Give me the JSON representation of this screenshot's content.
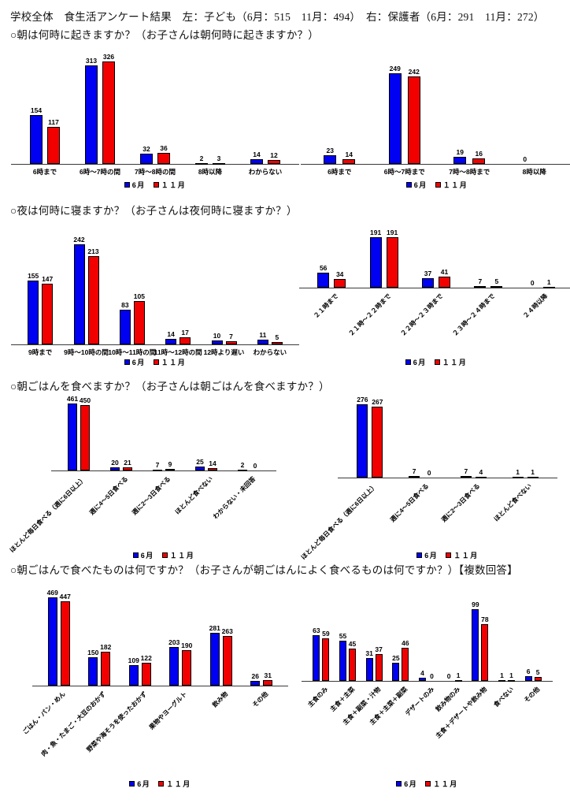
{
  "document": {
    "title": "学校全体　食生活アンケート結果　左：子ども（6月：515　11月：494）　右：保護者（6月：291　11月：272）",
    "questions": [
      "○朝は何時に起きますか？（お子さんは朝何時に起きますか？）",
      "○夜は何時に寝ますか？（お子さんは夜何時に寝ますか？）",
      "○朝ごはんを食べますか？（お子さんは朝ごはんを食べますか？）",
      "○朝ごはんで食べたものは何ですか？（お子さんが朝ごはんによく食べるものは何ですか？）【複数回答】"
    ]
  },
  "colors": {
    "june": "#0000f2",
    "november": "#f20000",
    "axis": "#3a3a3a"
  },
  "chart_data": [
    {
      "id": "wake-time-children",
      "type": "bar",
      "title": "朝は何時に起きますか？（子ども）",
      "categories": [
        "6時まで",
        "6時～7時の間",
        "7時～8時の間",
        "8時以降",
        "わからない"
      ],
      "series": [
        {
          "name": "6月",
          "color": "#0000f2",
          "values": [
            154,
            313,
            32,
            2,
            14
          ]
        },
        {
          "name": "１１月",
          "color": "#f20000",
          "values": [
            117,
            326,
            36,
            3,
            12
          ]
        }
      ],
      "ylim": [
        0,
        350
      ],
      "grid": false,
      "legend_position": "bottom",
      "rotated_labels": false
    },
    {
      "id": "wake-time-parents",
      "type": "bar",
      "title": "お子さんは朝何時に起きますか？（保護者）",
      "categories": [
        "6時まで",
        "6時～7時まで",
        "7時～8時まで",
        "8時以降"
      ],
      "series": [
        {
          "name": "6月",
          "color": "#0000f2",
          "values": [
            23,
            249,
            19,
            0
          ]
        },
        {
          "name": "１１月",
          "color": "#f20000",
          "values": [
            14,
            242,
            16,
            null
          ]
        }
      ],
      "ylim": [
        0,
        280
      ],
      "grid": false,
      "legend_position": "bottom",
      "rotated_labels": false
    },
    {
      "id": "bedtime-children",
      "type": "bar",
      "title": "夜は何時に寝ますか？（子ども）",
      "categories": [
        "9時まで",
        "9時～10時の間",
        "10時～11時の間",
        "11時～12時の間",
        "12時より遅い",
        "わからない"
      ],
      "series": [
        {
          "name": "6月",
          "color": "#0000f2",
          "values": [
            155,
            242,
            83,
            14,
            10,
            11
          ]
        },
        {
          "name": "１１月",
          "color": "#f20000",
          "values": [
            147,
            213,
            105,
            17,
            7,
            5
          ]
        }
      ],
      "ylim": [
        0,
        260
      ],
      "grid": false,
      "legend_position": "bottom",
      "rotated_labels": false
    },
    {
      "id": "bedtime-parents",
      "type": "bar",
      "title": "お子さんは夜何時に寝ますか？（保護者）",
      "categories": [
        "２１時まで",
        "２１時～２２時まで",
        "２２時～２３時まで",
        "２３時～２４時まで",
        "２４時以降"
      ],
      "series": [
        {
          "name": "6月",
          "color": "#0000f2",
          "values": [
            56,
            191,
            37,
            7,
            0
          ]
        },
        {
          "name": "１１月",
          "color": "#f20000",
          "values": [
            34,
            191,
            41,
            5,
            1
          ]
        }
      ],
      "ylim": [
        0,
        210
      ],
      "grid": false,
      "legend_position": "bottom",
      "rotated_labels": true
    },
    {
      "id": "breakfast-frequency-children",
      "type": "bar",
      "title": "朝ごはんを食べますか？（子ども）",
      "categories": [
        "ほとんど毎日食べる（週に6日以上）",
        "週に4～5日食べる",
        "週に2～3日食べる",
        "ほとんど食べない",
        "わからない・未回答"
      ],
      "series": [
        {
          "name": "6月",
          "color": "#0000f2",
          "values": [
            461,
            20,
            7,
            25,
            2
          ]
        },
        {
          "name": "１１月",
          "color": "#f20000",
          "values": [
            450,
            21,
            9,
            14,
            0
          ]
        }
      ],
      "ylim": [
        0,
        500
      ],
      "grid": false,
      "legend_position": "bottom",
      "rotated_labels": true
    },
    {
      "id": "breakfast-frequency-parents",
      "type": "bar",
      "title": "お子さんは朝ごはんを食べますか？（保護者）",
      "categories": [
        "ほとんど毎日食べる（週に6日以上）",
        "週に4～5日食べる",
        "週に2～3日食べる",
        "ほとんど食べない"
      ],
      "series": [
        {
          "name": "6月",
          "color": "#0000f2",
          "values": [
            276,
            7,
            7,
            1
          ]
        },
        {
          "name": "１１月",
          "color": "#f20000",
          "values": [
            267,
            0,
            4,
            1
          ]
        }
      ],
      "ylim": [
        0,
        300
      ],
      "grid": false,
      "legend_position": "bottom",
      "rotated_labels": true
    },
    {
      "id": "breakfast-foods-children",
      "type": "bar",
      "title": "朝ごはんで食べたものは何ですか？（子ども・複数回答）",
      "categories": [
        "ごはん・パン・めん",
        "肉・魚・たまご・大豆のおかず",
        "野菜や海そうを使ったおかず",
        "果物やヨーグルト",
        "飲み物",
        "その他"
      ],
      "series": [
        {
          "name": "6月",
          "color": "#0000f2",
          "values": [
            469,
            150,
            109,
            203,
            281,
            26
          ]
        },
        {
          "name": "１１月",
          "color": "#f20000",
          "values": [
            447,
            182,
            122,
            190,
            263,
            31
          ]
        }
      ],
      "ylim": [
        0,
        500
      ],
      "grid": false,
      "legend_position": "bottom",
      "rotated_labels": true
    },
    {
      "id": "breakfast-foods-parents",
      "type": "bar",
      "title": "お子さんが朝ごはんによく食べるものは何ですか？（保護者・複数回答）",
      "categories": [
        "主食のみ",
        "主食＋主菜",
        "主食＋副菜・汁物",
        "主食＋主菜＋副菜",
        "デザートのみ",
        "飲み物のみ",
        "主食＋デザートや飲み物",
        "食べない",
        "その他"
      ],
      "series": [
        {
          "name": "6月",
          "color": "#0000f2",
          "values": [
            63,
            55,
            31,
            25,
            4,
            0,
            99,
            1,
            6
          ]
        },
        {
          "name": "１１月",
          "color": "#f20000",
          "values": [
            59,
            45,
            37,
            46,
            0,
            1,
            78,
            1,
            5
          ]
        }
      ],
      "ylim": [
        0,
        110
      ],
      "grid": false,
      "legend_position": "bottom",
      "rotated_labels": true
    }
  ]
}
